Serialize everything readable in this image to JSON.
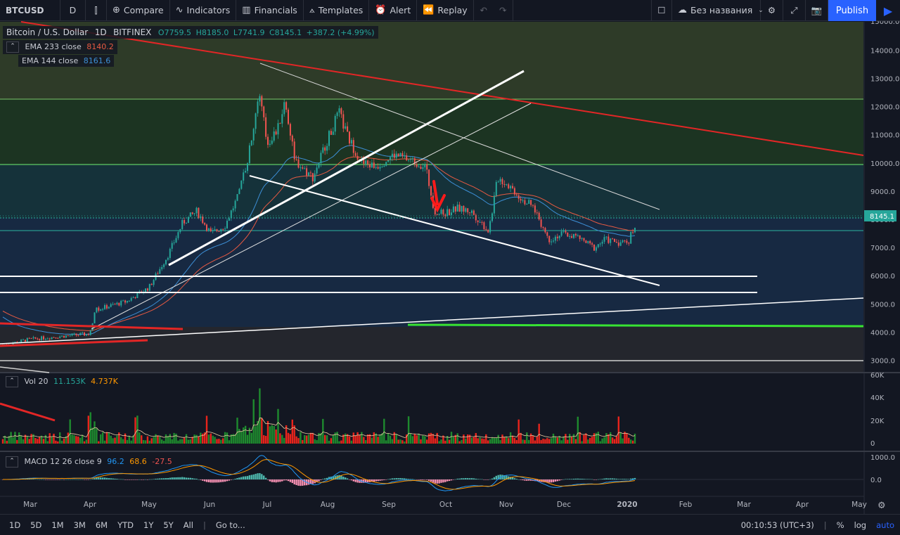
{
  "toolbar": {
    "symbol": "BTCUSD",
    "interval": "D",
    "compare": "Compare",
    "indicators": "Indicators",
    "financials": "Financials",
    "templates": "Templates",
    "alert": "Alert",
    "replay": "Replay",
    "layout_name": "Без названия",
    "publish": "Publish"
  },
  "legend": {
    "title": "Bitcoin / U.S. Dollar",
    "interval": "1D",
    "exchange": "BITFINEX",
    "open": "O7759.5",
    "high": "H8185.0",
    "low": "L7741.9",
    "close": "C8145.1",
    "change": "+387.2 (+4.99%)",
    "ema233_label": "EMA 233 close",
    "ema233_value": "8140.2",
    "ema144_label": "EMA 144 close",
    "ema144_value": "8161.6",
    "vol_label": "Vol 20",
    "vol_value1": "11.153K",
    "vol_value2": "4.737K",
    "macd_label": "MACD 12 26 close 9",
    "macd_v1": "96.2",
    "macd_v2": "68.6",
    "macd_v3": "-27.5"
  },
  "price_axis": [
    "13000.0",
    "12000.0",
    "11000.0",
    "10000.0",
    "9000.0",
    "8000.0",
    "7000.0",
    "6000.0",
    "5000.0",
    "4000.0",
    "3000.0"
  ],
  "price_axis_top": "14000.0",
  "price_axis_top2": "15000.0",
  "last_price": "8145.1",
  "vol_axis": [
    "60K",
    "40K",
    "20K",
    "0"
  ],
  "macd_axis": [
    "1000.0",
    "0.0"
  ],
  "time_axis": [
    "Mar",
    "Apr",
    "May",
    "Jun",
    "Jul",
    "Aug",
    "Sep",
    "Oct",
    "Nov",
    "Dec",
    "2020",
    "Feb",
    "Mar",
    "Apr",
    "May"
  ],
  "bottom": {
    "ranges": [
      "1D",
      "5D",
      "1M",
      "3M",
      "6M",
      "YTD",
      "1Y",
      "5Y",
      "All"
    ],
    "goto": "Go to...",
    "clock": "00:10:53 (UTC+3)",
    "pct": "%",
    "log": "log",
    "auto": "auto"
  },
  "colors": {
    "up": "#26a69a",
    "down": "#ef5350",
    "vol_up": "#1e8a2e",
    "vol_down": "#e8241c",
    "ema233": "#e85a42",
    "ema144": "#3d8fd6",
    "trend_red": "#e32626",
    "green_line": "#39e331",
    "accent": "#2962ff"
  },
  "chart_data": {
    "type": "candlestick",
    "series": [
      {
        "name": "BTCUSD",
        "x": [
          "Feb",
          "Mar",
          "Apr",
          "May",
          "Jun",
          "Jul",
          "Aug",
          "Sep",
          "Oct",
          "Nov",
          "Dec",
          "2020"
        ],
        "y": [
          3500,
          3850,
          4100,
          5700,
          8200,
          11800,
          10500,
          10300,
          8300,
          9300,
          7300,
          7200
        ]
      }
    ],
    "last_close": 8145.1,
    "ylim": [
      2500,
      15500
    ]
  }
}
